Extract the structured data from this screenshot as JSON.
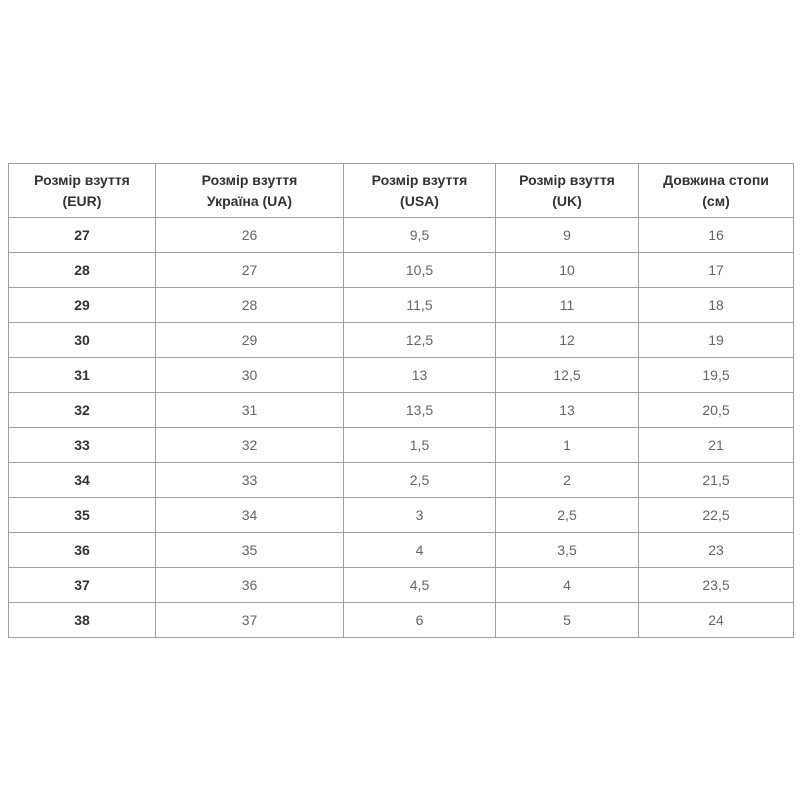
{
  "page": {
    "background": "#ffffff"
  },
  "table": {
    "border_color": "#9f9f9f",
    "header_text_color": "#333333",
    "cell_text_color": "#666666",
    "columns": [
      {
        "line1": "Розмір взуття",
        "line2": "(EUR)"
      },
      {
        "line1": "Розмір взуття",
        "line2": "Україна (UA)"
      },
      {
        "line1": "Розмір взуття",
        "line2": "(USA)"
      },
      {
        "line1": "Розмір взуття",
        "line2": "(UK)"
      },
      {
        "line1": "Довжина стопи",
        "line2": "(см)"
      }
    ],
    "rows": [
      [
        "27",
        "26",
        "9,5",
        "9",
        "16"
      ],
      [
        "28",
        "27",
        "10,5",
        "10",
        "17"
      ],
      [
        "29",
        "28",
        "11,5",
        "11",
        "18"
      ],
      [
        "30",
        "29",
        "12,5",
        "12",
        "19"
      ],
      [
        "31",
        "30",
        "13",
        "12,5",
        "19,5"
      ],
      [
        "32",
        "31",
        "13,5",
        "13",
        "20,5"
      ],
      [
        "33",
        "32",
        "1,5",
        "1",
        "21"
      ],
      [
        "34",
        "33",
        "2,5",
        "2",
        "21,5"
      ],
      [
        "35",
        "34",
        "3",
        "2,5",
        "22,5"
      ],
      [
        "36",
        "35",
        "4",
        "3,5",
        "23"
      ],
      [
        "37",
        "36",
        "4,5",
        "4",
        "23,5"
      ],
      [
        "38",
        "37",
        "6",
        "5",
        "24"
      ]
    ]
  }
}
